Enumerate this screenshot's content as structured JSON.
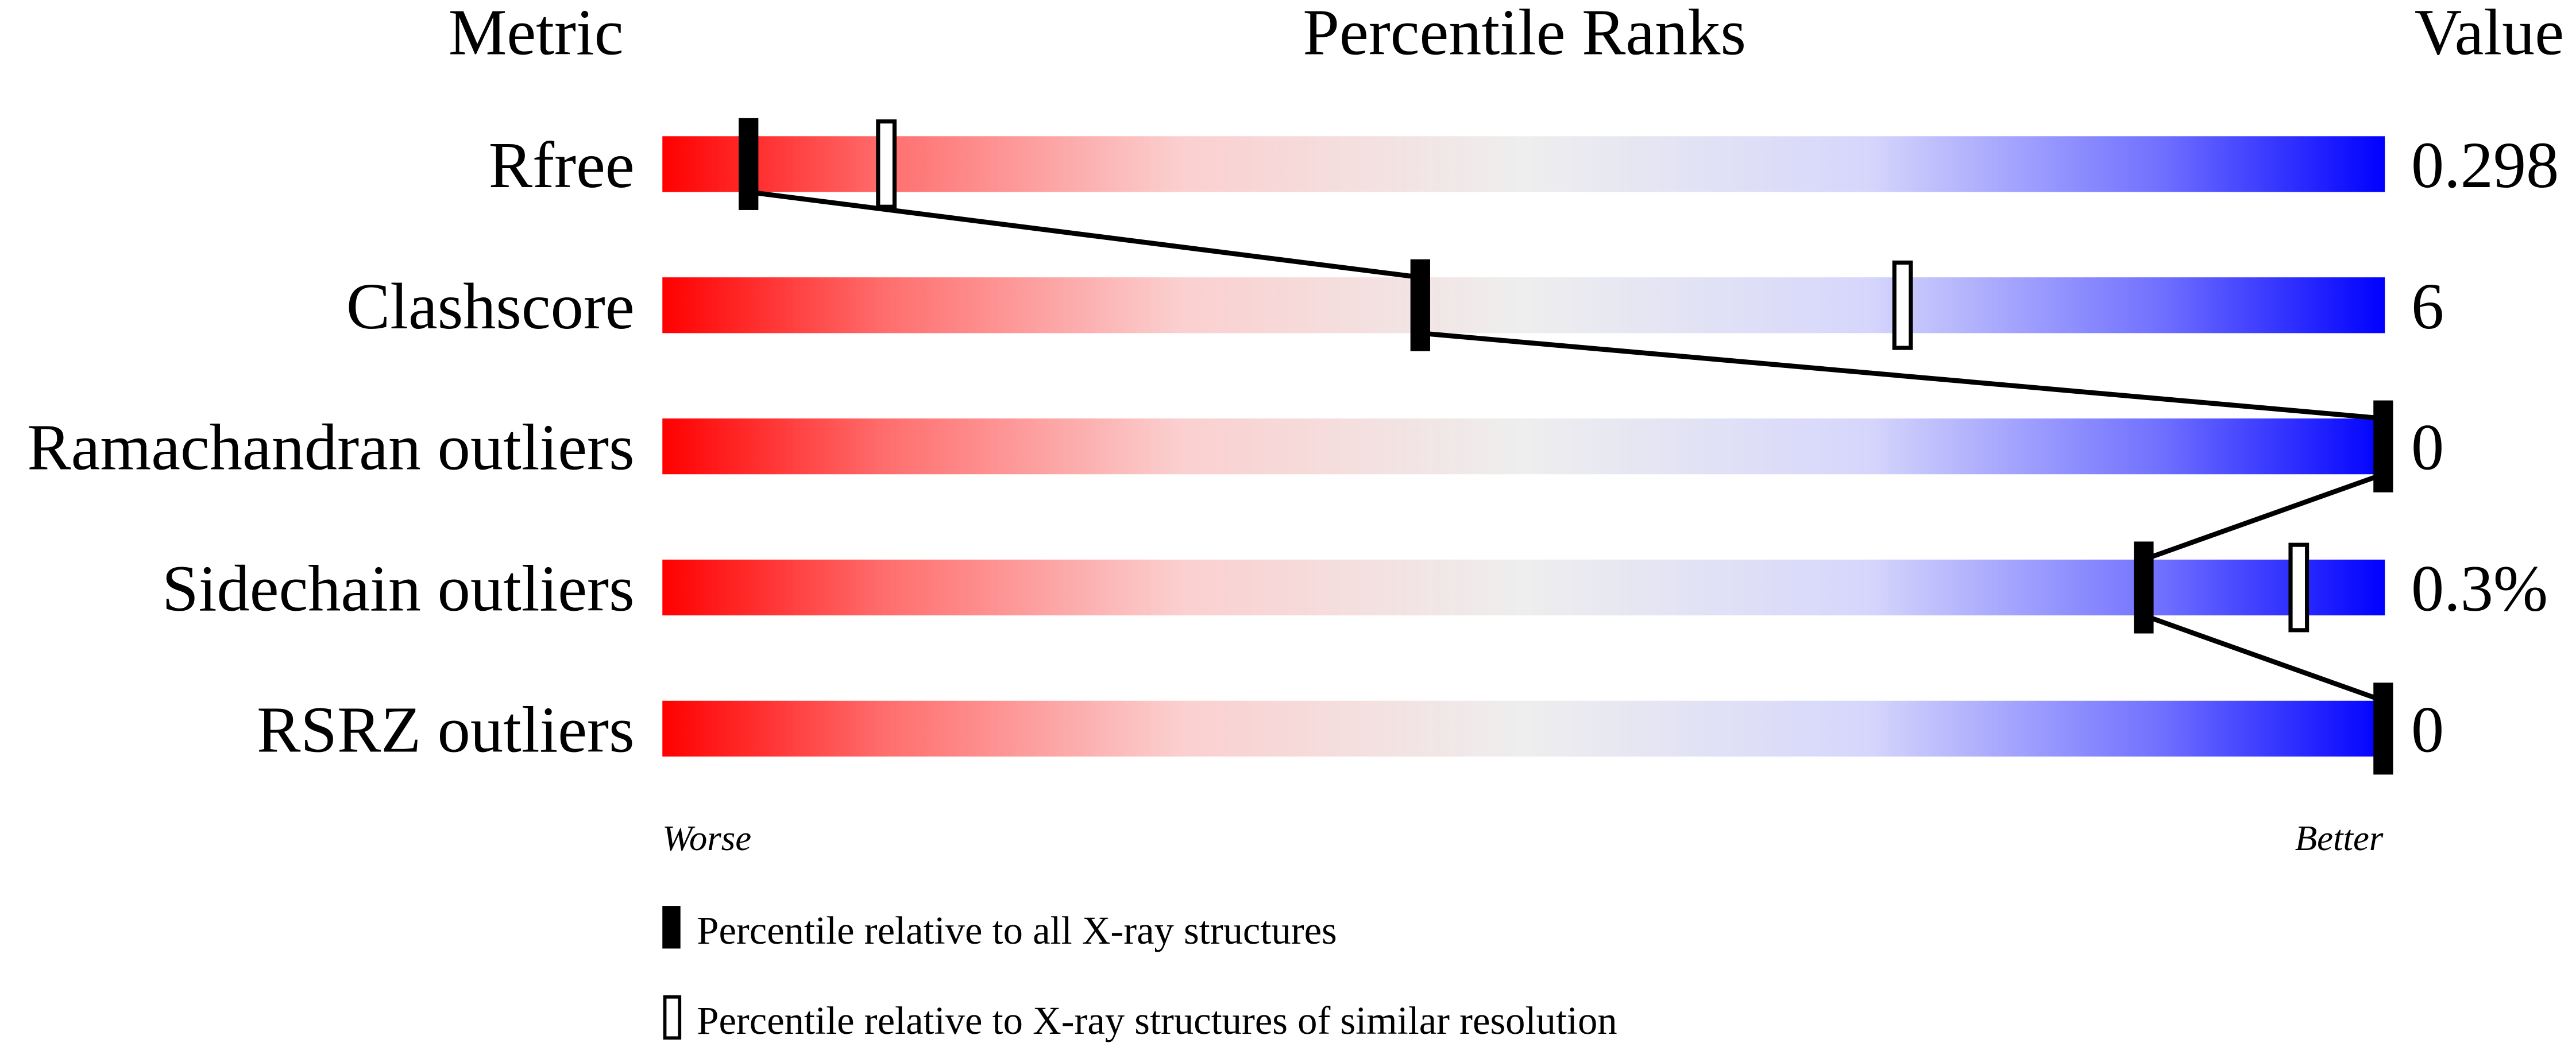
{
  "chart_data": {
    "type": "bar",
    "headers": {
      "metric": "Metric",
      "ranks": "Percentile Ranks",
      "value": "Value"
    },
    "xlim": [
      0,
      100
    ],
    "metrics": [
      {
        "name": "Rfree",
        "value": "0.298",
        "percentile_all": 5,
        "percentile_similar": 13
      },
      {
        "name": "Clashscore",
        "value": "6",
        "percentile_all": 44,
        "percentile_similar": 72
      },
      {
        "name": "Ramachandran outliers",
        "value": "0",
        "percentile_all": 100,
        "percentile_similar": null
      },
      {
        "name": "Sidechain outliers",
        "value": "0.3%",
        "percentile_all": 86,
        "percentile_similar": 95
      },
      {
        "name": "RSRZ outliers",
        "value": "0",
        "percentile_all": 100,
        "percentile_similar": null
      }
    ],
    "axis_labels": {
      "left": "Worse",
      "right": "Better"
    },
    "legend": [
      {
        "marker": "filled",
        "label": "Percentile relative to all X-ray structures"
      },
      {
        "marker": "open",
        "label": "Percentile relative to X-ray structures of similar resolution"
      }
    ],
    "colors": {
      "worse": "#ff0000",
      "middle": "#eeeeee",
      "better": "#0000ff",
      "marker": "#000000"
    }
  }
}
